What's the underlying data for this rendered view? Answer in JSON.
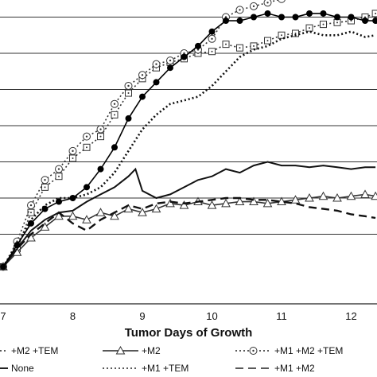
{
  "chart_data": {
    "type": "line",
    "title": "",
    "xlabel": "Tumor Days of Growth",
    "ylabel": "",
    "xlim": [
      7,
      12.35
    ],
    "ylim": [
      0,
      8.5
    ],
    "x_ticks": [
      7,
      8,
      9,
      10,
      11,
      12
    ],
    "gridlines_y": [
      1,
      2,
      3,
      4,
      5,
      6,
      7,
      8
    ],
    "grid": "horizontal",
    "legend_position": "bottom",
    "series": [
      {
        "name": "+M2 +TEM",
        "style": "dotted-square",
        "color": "#333333",
        "x": [
          7.0,
          7.2,
          7.4,
          7.6,
          7.8,
          8.0,
          8.2,
          8.4,
          8.6,
          8.8,
          9.0,
          9.2,
          9.4,
          9.6,
          9.8,
          10.0,
          10.2,
          10.4,
          10.6,
          10.8,
          11.0,
          11.2,
          11.4,
          11.6,
          11.8,
          12.0,
          12.2,
          12.35
        ],
        "y": [
          0.1,
          0.6,
          1.6,
          2.3,
          2.6,
          3.1,
          3.4,
          3.7,
          4.3,
          4.9,
          5.3,
          5.6,
          5.75,
          5.85,
          6.0,
          6.05,
          6.25,
          6.15,
          6.2,
          6.35,
          6.5,
          6.55,
          6.7,
          6.8,
          6.85,
          6.9,
          7.0,
          7.1
        ]
      },
      {
        "name": "+M2",
        "style": "triangle",
        "color": "#333333",
        "x": [
          7.0,
          7.2,
          7.4,
          7.6,
          7.8,
          8.0,
          8.2,
          8.4,
          8.6,
          8.8,
          9.0,
          9.2,
          9.4,
          9.6,
          9.8,
          10.0,
          10.2,
          10.4,
          10.6,
          10.8,
          11.0,
          11.2,
          11.4,
          11.6,
          11.8,
          12.0,
          12.2,
          12.35
        ],
        "y": [
          0.1,
          0.5,
          0.9,
          1.2,
          1.5,
          1.5,
          1.4,
          1.6,
          1.5,
          1.7,
          1.6,
          1.7,
          1.85,
          1.8,
          1.9,
          1.8,
          1.85,
          1.9,
          1.9,
          1.85,
          1.9,
          1.95,
          2.0,
          2.05,
          2.0,
          2.05,
          2.1,
          2.05
        ]
      },
      {
        "name": "+M1 +M2 +TEM",
        "style": "circle-dot",
        "color": "#333333",
        "x": [
          7.0,
          7.2,
          7.4,
          7.6,
          7.8,
          8.0,
          8.2,
          8.4,
          8.6,
          8.8,
          9.0,
          9.2,
          9.4,
          9.6,
          9.8,
          10.0,
          10.2,
          10.4,
          10.6,
          10.8,
          11.0,
          11.2,
          11.4,
          11.6,
          11.8,
          12.0,
          12.2,
          12.35
        ],
        "y": [
          0.1,
          0.8,
          1.8,
          2.5,
          2.8,
          3.3,
          3.7,
          3.9,
          4.6,
          5.1,
          5.4,
          5.7,
          5.8,
          6.0,
          6.1,
          6.4,
          7.0,
          7.2,
          7.3,
          7.4,
          7.5,
          7.7,
          7.9,
          8.0,
          8.1,
          8.2,
          8.3,
          8.4
        ]
      },
      {
        "name": "None",
        "style": "solid",
        "color": "#111111",
        "x": [
          7.0,
          7.2,
          7.4,
          7.6,
          7.8,
          8.0,
          8.2,
          8.4,
          8.6,
          8.8,
          8.9,
          9.0,
          9.2,
          9.4,
          9.6,
          9.8,
          10.0,
          10.2,
          10.4,
          10.6,
          10.8,
          11.0,
          11.2,
          11.4,
          11.6,
          11.8,
          12.0,
          12.2,
          12.35
        ],
        "y": [
          0.1,
          0.6,
          1.1,
          1.4,
          1.6,
          1.65,
          1.9,
          2.1,
          2.3,
          2.6,
          2.8,
          2.2,
          2.0,
          2.1,
          2.3,
          2.5,
          2.6,
          2.8,
          2.7,
          2.9,
          3.0,
          2.9,
          2.9,
          2.85,
          2.9,
          2.85,
          2.8,
          2.85,
          2.85
        ]
      },
      {
        "name": "+M1 +TEM",
        "style": "dotted",
        "color": "#111111",
        "x": [
          7.0,
          7.2,
          7.4,
          7.6,
          7.8,
          8.0,
          8.2,
          8.4,
          8.6,
          8.8,
          9.0,
          9.2,
          9.4,
          9.6,
          9.8,
          10.0,
          10.2,
          10.4,
          10.6,
          10.8,
          11.0,
          11.2,
          11.4,
          11.6,
          11.8,
          12.0,
          12.2,
          12.35
        ],
        "y": [
          0.1,
          0.7,
          1.4,
          1.8,
          2.0,
          2.0,
          2.1,
          2.3,
          2.7,
          3.3,
          3.9,
          4.3,
          4.6,
          4.7,
          4.8,
          5.1,
          5.5,
          5.9,
          6.1,
          6.2,
          6.4,
          6.5,
          6.6,
          6.5,
          6.5,
          6.6,
          6.45,
          6.5
        ]
      },
      {
        "name": "+M1 +M2",
        "style": "dashed",
        "color": "#111111",
        "x": [
          7.0,
          7.2,
          7.4,
          7.6,
          7.8,
          8.0,
          8.2,
          8.4,
          8.6,
          8.8,
          9.0,
          9.2,
          9.4,
          9.6,
          9.8,
          10.0,
          10.2,
          10.4,
          10.6,
          10.8,
          11.0,
          11.2,
          11.4,
          11.6,
          11.8,
          12.0,
          12.2,
          12.35
        ],
        "y": [
          0.1,
          0.6,
          1.0,
          1.3,
          1.6,
          1.3,
          1.1,
          1.4,
          1.6,
          1.8,
          1.7,
          1.85,
          1.9,
          1.85,
          1.9,
          1.95,
          2.0,
          2.0,
          1.95,
          1.95,
          1.9,
          1.85,
          1.75,
          1.7,
          1.65,
          1.55,
          1.5,
          1.45
        ]
      },
      {
        "name": "+M1 +M2 (filled)",
        "style": "filled-circle",
        "color": "#000000",
        "legend": false,
        "x": [
          7.0,
          7.2,
          7.4,
          7.6,
          7.8,
          8.0,
          8.2,
          8.4,
          8.6,
          8.8,
          9.0,
          9.2,
          9.4,
          9.6,
          9.8,
          10.0,
          10.2,
          10.4,
          10.6,
          10.8,
          11.0,
          11.2,
          11.4,
          11.6,
          11.8,
          12.0,
          12.2,
          12.35
        ],
        "y": [
          0.1,
          0.7,
          1.3,
          1.7,
          1.9,
          2.0,
          2.3,
          2.8,
          3.4,
          4.2,
          4.8,
          5.2,
          5.6,
          5.9,
          6.2,
          6.6,
          6.9,
          6.9,
          7.0,
          7.1,
          7.0,
          7.0,
          7.1,
          7.1,
          7.0,
          7.0,
          6.9,
          6.9
        ]
      }
    ],
    "legend": [
      {
        "label": "+M2 +TEM",
        "style": "dotted-square"
      },
      {
        "label": "+M2",
        "style": "triangle"
      },
      {
        "label": "+M1 +M2 +TEM",
        "style": "circle-dot"
      },
      {
        "label": "None",
        "style": "solid"
      },
      {
        "label": "+M1 +TEM",
        "style": "dotted"
      },
      {
        "label": "+M1 +M2",
        "style": "dashed"
      }
    ]
  }
}
